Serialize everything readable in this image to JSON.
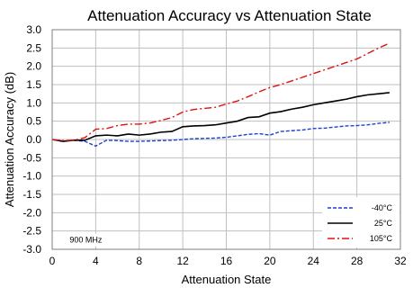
{
  "chart_data": {
    "type": "line",
    "title": "Attenuation Accuracy vs Attenuation State",
    "xlabel": "Attenuation State",
    "ylabel": "Attenuation Accuracy (dB)",
    "xlim": [
      0,
      32
    ],
    "ylim": [
      -3.0,
      3.0
    ],
    "xticks": [
      0,
      4,
      8,
      12,
      16,
      20,
      24,
      28,
      32
    ],
    "yticks": [
      -3.0,
      -2.5,
      -2.0,
      -1.5,
      -1.0,
      -0.5,
      0.0,
      0.5,
      1.0,
      1.5,
      2.0,
      2.5,
      3.0
    ],
    "grid": true,
    "legend_position": "bottom-right",
    "annotation": "900 MHz",
    "x": [
      0,
      1,
      2,
      3,
      4,
      5,
      6,
      7,
      8,
      9,
      10,
      11,
      12,
      13,
      14,
      15,
      16,
      17,
      18,
      19,
      20,
      21,
      22,
      23,
      24,
      25,
      26,
      27,
      28,
      29,
      30,
      31
    ],
    "series": [
      {
        "name": "-40°C",
        "color": "#1f3fd1",
        "dash": "dashed",
        "values": [
          0.0,
          -0.05,
          -0.02,
          -0.05,
          -0.18,
          -0.02,
          -0.03,
          -0.05,
          -0.05,
          -0.04,
          -0.03,
          -0.02,
          0.0,
          0.02,
          0.03,
          0.04,
          0.06,
          0.1,
          0.14,
          0.16,
          0.12,
          0.22,
          0.24,
          0.26,
          0.3,
          0.31,
          0.34,
          0.37,
          0.38,
          0.4,
          0.44,
          0.47
        ]
      },
      {
        "name": "25°C",
        "color": "#000000",
        "dash": "solid",
        "values": [
          0.0,
          -0.05,
          -0.02,
          -0.02,
          0.1,
          0.12,
          0.1,
          0.15,
          0.12,
          0.15,
          0.2,
          0.22,
          0.35,
          0.37,
          0.38,
          0.4,
          0.45,
          0.5,
          0.6,
          0.62,
          0.72,
          0.76,
          0.83,
          0.88,
          0.95,
          1.0,
          1.05,
          1.1,
          1.17,
          1.22,
          1.25,
          1.28
        ]
      },
      {
        "name": "105°C",
        "color": "#e01010",
        "dash": "dashdot",
        "values": [
          0.0,
          -0.03,
          -0.02,
          0.05,
          0.28,
          0.3,
          0.38,
          0.42,
          0.42,
          0.45,
          0.52,
          0.6,
          0.75,
          0.82,
          0.85,
          0.88,
          0.97,
          1.05,
          1.17,
          1.3,
          1.42,
          1.5,
          1.6,
          1.7,
          1.8,
          1.9,
          2.0,
          2.1,
          2.2,
          2.35,
          2.5,
          2.63
        ]
      }
    ]
  }
}
